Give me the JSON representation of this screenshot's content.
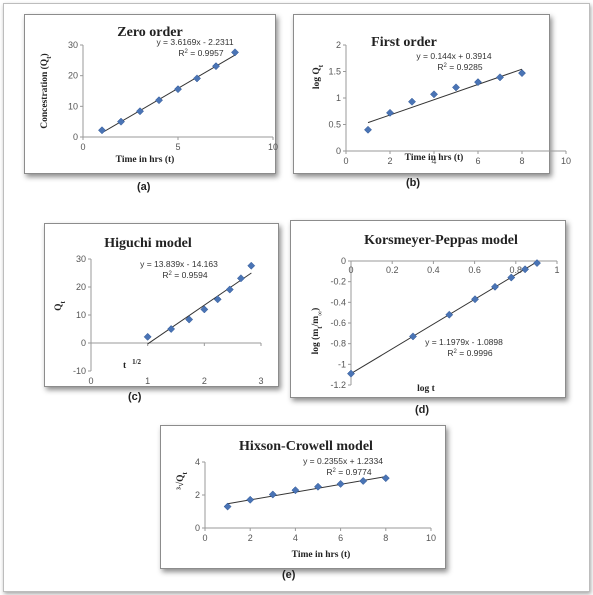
{
  "captions": [
    "(a)",
    "(b)",
    "(c)",
    "(d)",
    "(e)"
  ],
  "chart_data": [
    {
      "type": "scatter",
      "title": "Zero order",
      "xlabel": "Time in hrs (t)",
      "ylabel": "Concestration (Q",
      "ylabel_sub": "t",
      "ylabel_end": ")",
      "xlim": [
        0,
        10
      ],
      "ylim": [
        0,
        30
      ],
      "xticks": [
        0,
        5,
        10
      ],
      "yticks": [
        0,
        10,
        20,
        30
      ],
      "x": [
        1,
        2,
        3,
        4,
        5,
        6,
        7,
        8
      ],
      "y": [
        2.2,
        5.0,
        8.4,
        12.0,
        15.6,
        19.1,
        23.1,
        27.6
      ],
      "trendline": {
        "slope": 3.6169,
        "intercept": -2.2311,
        "from": 1,
        "to": 8
      },
      "equation": "y = 3.6169x - 2.2311",
      "r2_prefix": "R",
      "r2_value": " = 0.9957"
    },
    {
      "type": "scatter",
      "title": "First order",
      "xlabel": "Time in hrs (t)",
      "ylabel": "log Q",
      "ylabel_sub": "t",
      "ylabel_end": "",
      "xlim": [
        0,
        10
      ],
      "ylim": [
        0,
        2
      ],
      "xticks": [
        0,
        2,
        4,
        6,
        8,
        10
      ],
      "yticks": [
        0,
        0.5,
        1,
        1.5,
        2
      ],
      "x": [
        1,
        2,
        3,
        4,
        5,
        6,
        7,
        8
      ],
      "y": [
        0.4,
        0.72,
        0.93,
        1.07,
        1.2,
        1.3,
        1.39,
        1.47
      ],
      "trendline": {
        "slope": 0.144,
        "intercept": 0.3914,
        "from": 1,
        "to": 8
      },
      "equation": "y = 0.144x + 0.3914",
      "r2_prefix": "R",
      "r2_value": " = 0.9285"
    },
    {
      "type": "scatter",
      "title": "Higuchi model",
      "xlabel": "t",
      "xlabel_sup": "1/2",
      "ylabel": "Q",
      "ylabel_sub": "t",
      "ylabel_end": "",
      "xlim": [
        0,
        3
      ],
      "ylim": [
        -10,
        30
      ],
      "xticks": [
        0,
        1,
        2,
        3
      ],
      "yticks": [
        -10,
        0,
        10,
        20,
        30
      ],
      "x": [
        1,
        1.414,
        1.732,
        2,
        2.236,
        2.449,
        2.646,
        2.828
      ],
      "y": [
        2.2,
        5.0,
        8.4,
        12.0,
        15.6,
        19.1,
        23.1,
        27.6
      ],
      "trendline": {
        "slope": 13.839,
        "intercept": -14.163,
        "from": 1,
        "to": 2.83
      },
      "equation": "y = 13.839x - 14.163",
      "r2_prefix": "R",
      "r2_value": " = 0.9594"
    },
    {
      "type": "scatter",
      "title": "Korsmeyer-Peppas model",
      "xlabel": "log t",
      "ylabel": "log (m",
      "ylabel_sub": "t",
      "ylabel_mid": "/m",
      "ylabel_sub2": "∞",
      "ylabel_end": ")",
      "xlim": [
        0,
        1
      ],
      "ylim": [
        -1.2,
        0
      ],
      "xticks": [
        0,
        0.2,
        0.4,
        0.6,
        0.8,
        1
      ],
      "yticks": [
        0,
        -0.2,
        -0.4,
        -0.6,
        -0.8,
        -1,
        -1.2
      ],
      "x": [
        0,
        0.301,
        0.477,
        0.602,
        0.699,
        0.778,
        0.845,
        0.903
      ],
      "y": [
        -1.09,
        -0.73,
        -0.52,
        -0.37,
        -0.25,
        -0.16,
        -0.08,
        -0.02
      ],
      "trendline": {
        "slope": 1.1979,
        "intercept": -1.0898,
        "from": 0,
        "to": 0.91
      },
      "equation": "y = 1.1979x - 1.0898",
      "r2_prefix": "R",
      "r2_value": " = 0.9996"
    },
    {
      "type": "scatter",
      "title": "Hixson-Crowell model",
      "xlabel": "Time in hrs (t)",
      "ylabel": "³√Q",
      "ylabel_sub": "t",
      "ylabel_end": "",
      "xlim": [
        0,
        10
      ],
      "ylim": [
        0,
        4
      ],
      "xticks": [
        0,
        2,
        4,
        6,
        8,
        10
      ],
      "yticks": [
        0,
        2,
        4
      ],
      "x": [
        1,
        2,
        3,
        4,
        5,
        6,
        7,
        8
      ],
      "y": [
        1.3,
        1.71,
        2.03,
        2.29,
        2.5,
        2.67,
        2.85,
        3.02
      ],
      "trendline": {
        "slope": 0.2355,
        "intercept": 1.2334,
        "from": 1,
        "to": 8
      },
      "equation": "y = 0.2355x + 1.2334",
      "r2_prefix": "R",
      "r2_value": " = 0.9774"
    }
  ]
}
